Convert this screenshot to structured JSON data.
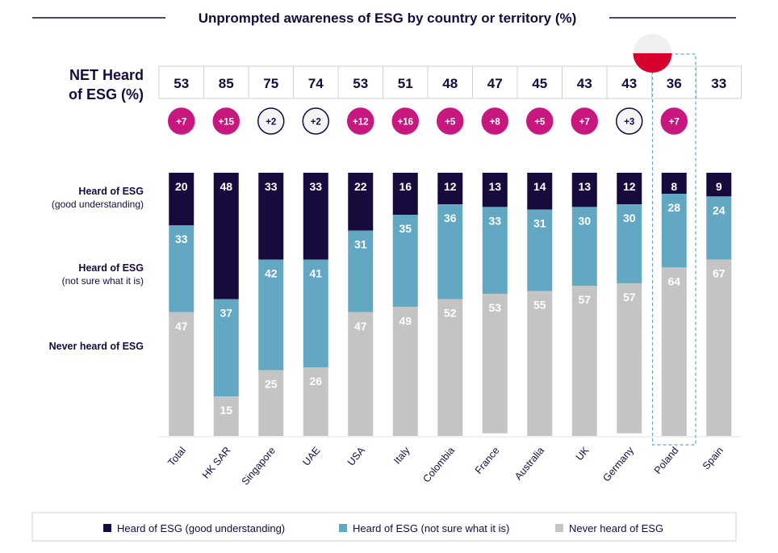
{
  "chart_data": {
    "type": "bar",
    "stacked": true,
    "title": "Unprompted awareness of ESG by country or territory (%)",
    "categories": [
      "Total",
      "HK SAR",
      "Singapore",
      "UAE",
      "USA",
      "Italy",
      "Colombia",
      "France",
      "Australia",
      "UK",
      "Germany",
      "Poland",
      "Spain"
    ],
    "series": [
      {
        "name": "Heard of ESG (good understanding)",
        "color": "#170a3c",
        "values": [
          20,
          48,
          33,
          33,
          22,
          16,
          12,
          13,
          14,
          13,
          12,
          8,
          9
        ]
      },
      {
        "name": "Heard of ESG (not sure what it is)",
        "color": "#63a8c2",
        "values": [
          33,
          37,
          42,
          41,
          31,
          35,
          36,
          33,
          31,
          30,
          30,
          28,
          24
        ]
      },
      {
        "name": "Never heard of ESG",
        "color": "#c4c4c4",
        "values": [
          47,
          15,
          25,
          26,
          47,
          49,
          52,
          53,
          55,
          57,
          57,
          64,
          67
        ]
      }
    ],
    "ylim": [
      0,
      100
    ],
    "row_labels": {
      "good": {
        "title": "Heard of ESG",
        "sub": "(good understanding)"
      },
      "notsure": {
        "title": "Heard of ESG",
        "sub": "(not sure what it is)"
      },
      "never": {
        "title": "Never heard of ESG"
      }
    },
    "net": {
      "label_line1": "NET Heard",
      "label_line2": "of ESG (%)",
      "values": [
        53,
        85,
        75,
        74,
        53,
        51,
        48,
        47,
        45,
        43,
        43,
        36,
        33
      ]
    },
    "change": {
      "values": [
        "+7",
        "+15",
        "+2",
        "+2",
        "+12",
        "+16",
        "+5",
        "+8",
        "+5",
        "+7",
        "+3",
        "+7",
        ""
      ],
      "significant": [
        true,
        true,
        false,
        false,
        true,
        true,
        true,
        true,
        true,
        true,
        false,
        true,
        false
      ],
      "color": "#c8187f"
    },
    "highlight": {
      "category": "Poland",
      "flag_colors": [
        "#f0f0f0",
        "#d7002c"
      ]
    },
    "legend": "bottom"
  }
}
